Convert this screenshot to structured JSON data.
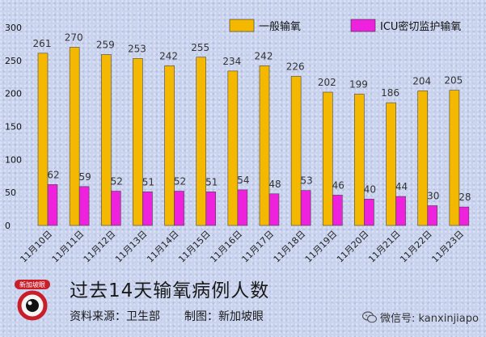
{
  "chart_data": {
    "type": "bar",
    "categories": [
      "11月10日",
      "11月11日",
      "11月12日",
      "11月13日",
      "11月14日",
      "11月15日",
      "11月16日",
      "11月17日",
      "11月18日",
      "11月19日",
      "11月20日",
      "11月21日",
      "11月22日",
      "11月23日"
    ],
    "series": [
      {
        "name": "一般输氧",
        "values": [
          261,
          270,
          259,
          253,
          242,
          255,
          234,
          242,
          226,
          202,
          199,
          186,
          204,
          205
        ],
        "color": "#f5b800"
      },
      {
        "name": "ICU密切监护输氧",
        "values": [
          62,
          59,
          52,
          51,
          52,
          51,
          54,
          48,
          53,
          46,
          40,
          44,
          30,
          28
        ],
        "color": "#ee22dd"
      }
    ],
    "ylim": [
      0,
      300
    ],
    "yticks": [
      0,
      50,
      100,
      150,
      200,
      250,
      300
    ],
    "legend": "top",
    "grid": false
  },
  "title": "过去14天输氧病例人数",
  "source": {
    "label": "资料来源：",
    "value": "卫生部",
    "made_label": "制图：",
    "made_value": "新加坡眼"
  },
  "logo_text": "新加坡眼",
  "wechat": "微信号: kanxinjiapo"
}
